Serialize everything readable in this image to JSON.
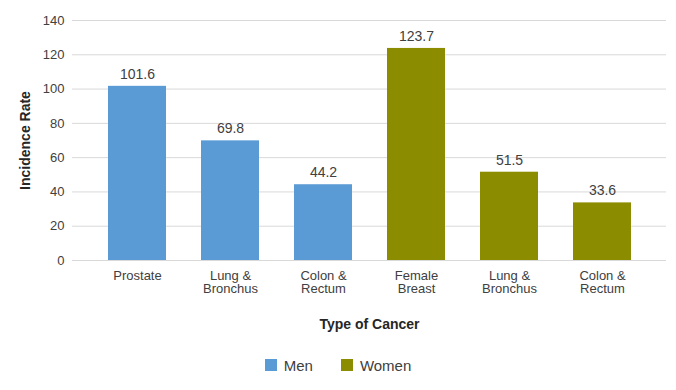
{
  "chart_data": {
    "type": "bar",
    "xlabel": "Type of Cancer",
    "ylabel": "Incidence Rate",
    "categories": [
      "Prostate",
      "Lung & Bronchus",
      "Colon & Rectum",
      "Female Breast",
      "Lung & Bronchus",
      "Colon & Rectum"
    ],
    "series": [
      {
        "name": "Men",
        "color": "#5b9bd5",
        "values": [
          101.6,
          69.8,
          44.2,
          null,
          null,
          null
        ]
      },
      {
        "name": "Women",
        "color": "#8c8c00",
        "values": [
          null,
          null,
          null,
          123.7,
          51.5,
          33.6
        ]
      }
    ],
    "ylim": [
      0,
      140
    ],
    "yticks": [
      0,
      20,
      40,
      60,
      80,
      100,
      120,
      140
    ],
    "grid": true,
    "legend": "bottom",
    "data_labels": true
  }
}
